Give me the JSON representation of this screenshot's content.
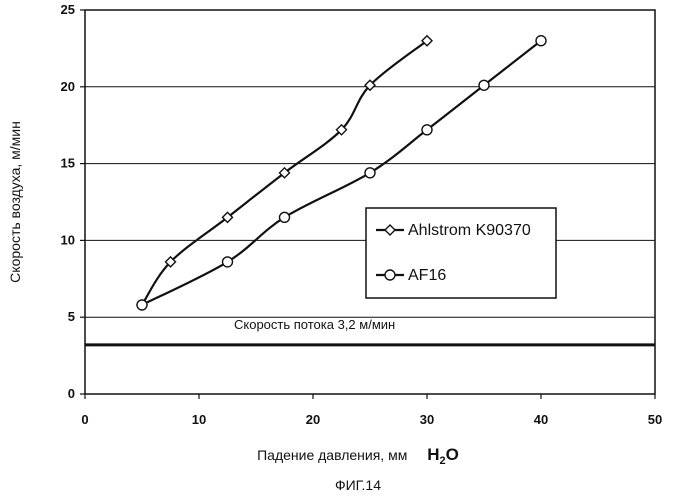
{
  "chart_data": {
    "type": "line",
    "title": "",
    "xlabel": "Падение давления, мм",
    "xlabel_unit": "H",
    "xlabel_unit_sub": "2",
    "xlabel_unit_tail": "O",
    "ylabel": "Скорость воздуха, м/мин",
    "xlim": [
      0,
      50
    ],
    "ylim": [
      0,
      25
    ],
    "x_ticks": [
      0,
      10,
      20,
      30,
      40,
      50
    ],
    "y_ticks": [
      0,
      5,
      10,
      15,
      20,
      25
    ],
    "grid": "horizontal",
    "legend_position": "center-right",
    "series": [
      {
        "name": "Ahlstrom K90370",
        "marker": "diamond",
        "x": [
          5,
          7.5,
          12.5,
          17.5,
          22.5,
          25,
          30
        ],
        "y": [
          5.8,
          8.6,
          11.5,
          14.4,
          17.2,
          20.1,
          23.0
        ]
      },
      {
        "name": "AF16",
        "marker": "circle",
        "x": [
          5,
          12.5,
          17.5,
          25,
          30,
          35,
          40
        ],
        "y": [
          5.8,
          8.6,
          11.5,
          14.4,
          17.2,
          20.1,
          23.0
        ]
      }
    ],
    "reference_line": {
      "y": 3.2,
      "label": "Скорость потока 3,2 м/мин"
    },
    "caption": "ФИГ.14"
  },
  "colors": {
    "line": "#111111",
    "background": "#ffffff"
  }
}
